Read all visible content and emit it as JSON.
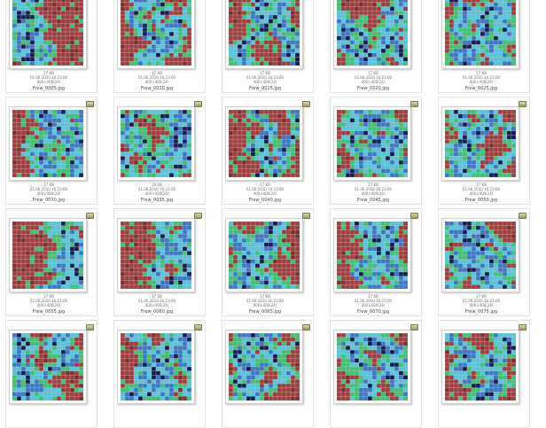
{
  "window": {
    "view": "thumbnails"
  },
  "palette": {
    "red": "#9c3f3f",
    "red_dark": "#7e3030",
    "green": "#3fc274",
    "cyan": "#56c6dc",
    "blue": "#3a78c8",
    "navy": "#141e52",
    "grid_line": "#d6bcbc",
    "badge": "#a9a970"
  },
  "files": [
    {
      "name": "Frew_0005.jpg",
      "size": "17 KB",
      "date": "01.06.2010 16:23:00",
      "dims": "400×400(24)"
    },
    {
      "name": "Frew_0010.jpg",
      "size": "17 KB",
      "date": "01.06.2010 16:23:00",
      "dims": "400×400(24)"
    },
    {
      "name": "Frew_0015.jpg",
      "size": "17 KB",
      "date": "01.06.2010 16:23:00",
      "dims": "400×400(24)"
    },
    {
      "name": "Frew_0020.jpg",
      "size": "17 KB",
      "date": "01.06.2010 16:23:00",
      "dims": "400×400(24)"
    },
    {
      "name": "Frew_0025.jpg",
      "size": "17 KB",
      "date": "01.06.2010 16:23:00",
      "dims": "400×400(24)"
    },
    {
      "name": "Frew_0030.jpg",
      "size": "17 KB",
      "date": "01.06.2010 16:23:00",
      "dims": "400×400(24)"
    },
    {
      "name": "Frew_0035.jpg",
      "size": "16 KB",
      "date": "01.06.2010 16:23:00",
      "dims": "400×400(24)"
    },
    {
      "name": "Frew_0040.jpg",
      "size": "17 KB",
      "date": "01.06.2010 16:23:00",
      "dims": "400×400(24)"
    },
    {
      "name": "Frew_0045.jpg",
      "size": "17 KB",
      "date": "01.06.2010 16:23:00",
      "dims": "400×400(24)"
    },
    {
      "name": "Frew_0050.jpg",
      "size": "17 KB",
      "date": "01.06.2010 16:23:00",
      "dims": "400×400(24)"
    },
    {
      "name": "Frew_0055.jpg",
      "size": "17 KB",
      "date": "01.06.2010 16:23:00",
      "dims": "400×400(24)"
    },
    {
      "name": "Frew_0060.jpg",
      "size": "17 KB",
      "date": "01.06.2010 16:23:00",
      "dims": "400×400(24)"
    },
    {
      "name": "Frew_0065.jpg",
      "size": "17 KB",
      "date": "01.06.2010 16:23:00",
      "dims": "400×400(24)"
    },
    {
      "name": "Frew_0070.jpg",
      "size": "17 KB",
      "date": "01.06.2010 16:23:00",
      "dims": "400×400(24)"
    },
    {
      "name": "Frew_0075.jpg",
      "size": "17 KB",
      "date": "01.06.2010 16:23:00",
      "dims": "400×400(24)"
    },
    {
      "name": "",
      "size": "",
      "date": "",
      "dims": ""
    },
    {
      "name": "",
      "size": "",
      "date": "",
      "dims": ""
    },
    {
      "name": "",
      "size": "",
      "date": "",
      "dims": ""
    },
    {
      "name": "",
      "size": "",
      "date": "",
      "dims": ""
    },
    {
      "name": "",
      "size": "",
      "date": "",
      "dims": ""
    }
  ]
}
